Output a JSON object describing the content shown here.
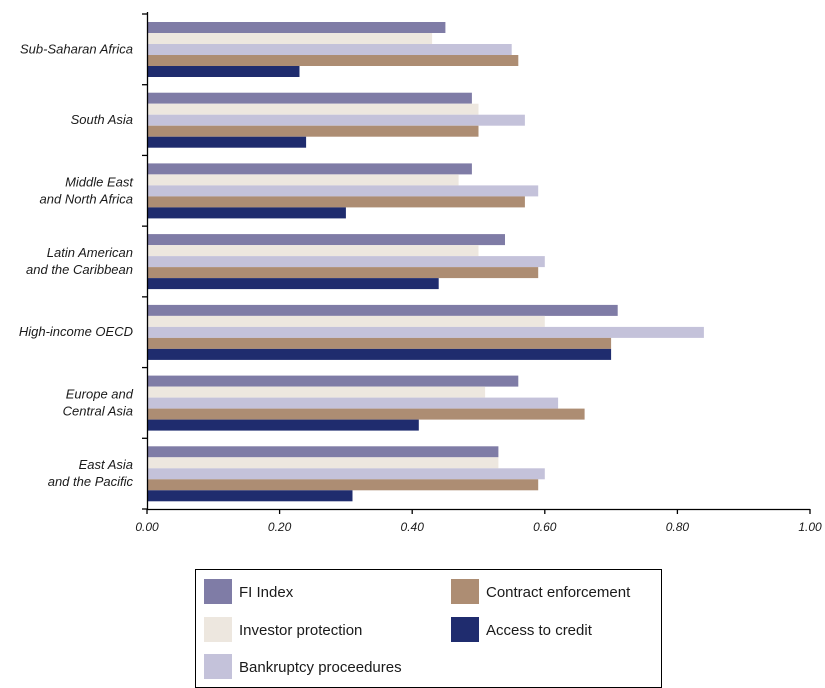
{
  "chart_data": {
    "type": "bar",
    "orientation": "horizontal",
    "categories": [
      [
        "Sub-Saharan Africa"
      ],
      [
        "South Asia"
      ],
      [
        "Middle East",
        "and North Africa"
      ],
      [
        "Latin American",
        "and the Caribbean"
      ],
      [
        "High-income OECD"
      ],
      [
        "Europe and",
        "Central Asia"
      ],
      [
        "East Asia",
        "and the Pacific"
      ]
    ],
    "series": [
      {
        "name": "FI Index",
        "color": "#7f7ca6",
        "values": [
          0.45,
          0.49,
          0.49,
          0.54,
          0.71,
          0.56,
          0.53
        ]
      },
      {
        "name": "Investor protection",
        "color": "#ede7df",
        "values": [
          0.43,
          0.5,
          0.47,
          0.5,
          0.6,
          0.51,
          0.53
        ]
      },
      {
        "name": "Bankruptcy proceedures",
        "color": "#c4c2da",
        "values": [
          0.55,
          0.57,
          0.59,
          0.6,
          0.84,
          0.62,
          0.6
        ]
      },
      {
        "name": "Contract enforcement",
        "color": "#ad8d73",
        "values": [
          0.56,
          0.5,
          0.57,
          0.59,
          0.7,
          0.66,
          0.59
        ]
      },
      {
        "name": "Access to credit",
        "color": "#1f2c6e",
        "values": [
          0.23,
          0.24,
          0.3,
          0.44,
          0.7,
          0.41,
          0.31
        ]
      }
    ],
    "xlim": [
      0,
      1.0
    ],
    "xticks": [
      "0.00",
      "0.20",
      "0.40",
      "0.60",
      "0.80",
      "1.00"
    ],
    "grid": false,
    "legend": {
      "placement": "bottom-center",
      "order": [
        "FI Index",
        "Contract enforcement",
        "Investor protection",
        "Access to credit",
        "Bankruptcy proceedures"
      ]
    }
  }
}
